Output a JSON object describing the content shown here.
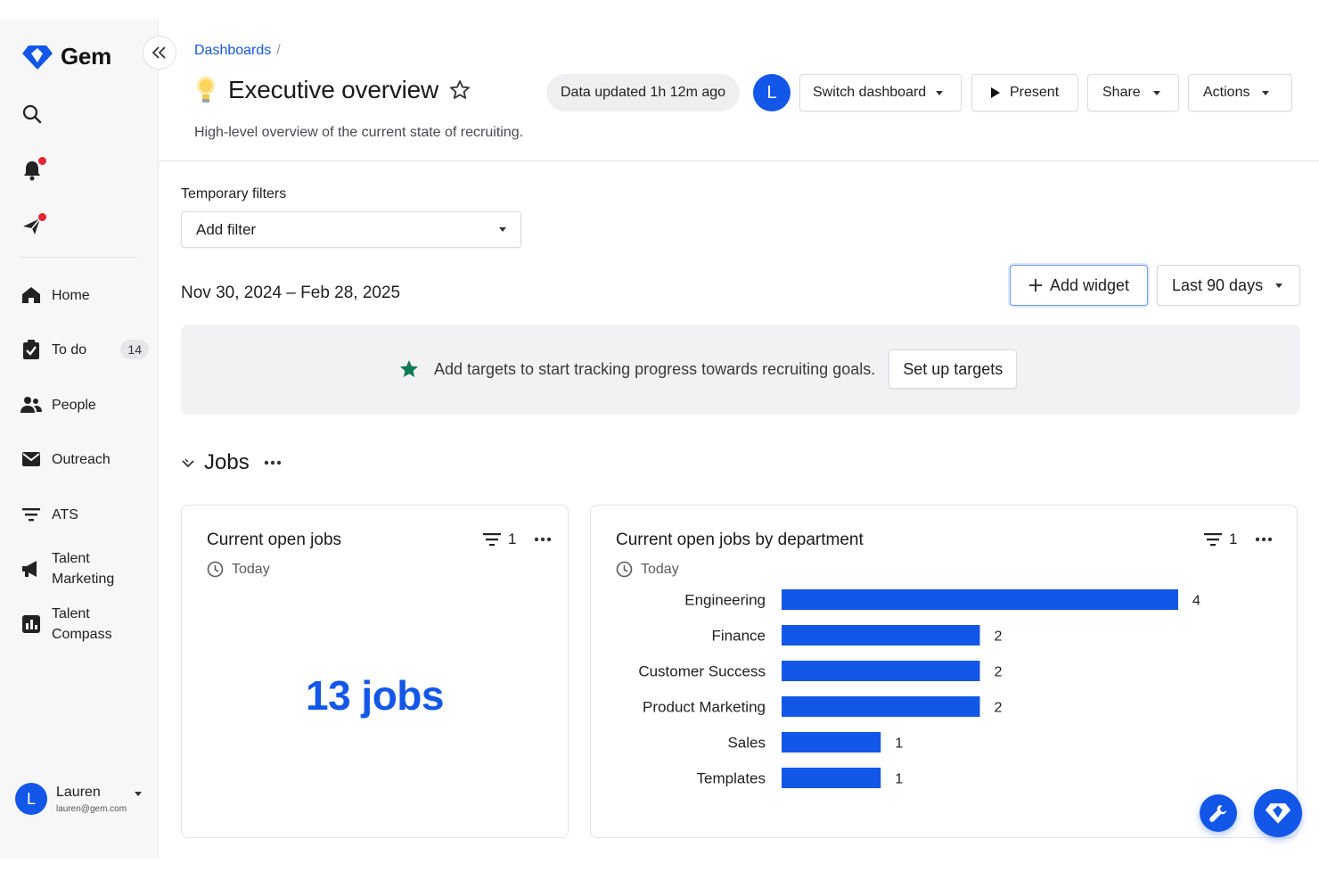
{
  "brand": {
    "name": "Gem",
    "color": "#1357e8"
  },
  "sidebar": {
    "nav": [
      {
        "id": "home",
        "label": "Home",
        "icon": "home-icon"
      },
      {
        "id": "todo",
        "label": "To do",
        "icon": "clipboard-check-icon",
        "badge": "14"
      },
      {
        "id": "people",
        "label": "People",
        "icon": "people-icon"
      },
      {
        "id": "outreach",
        "label": "Outreach",
        "icon": "envelope-icon"
      },
      {
        "id": "ats",
        "label": "ATS",
        "icon": "filter-lines-icon"
      },
      {
        "id": "talent-marketing",
        "label": "Talent Marketing",
        "icon": "megaphone-icon"
      },
      {
        "id": "talent-compass",
        "label": "Talent Compass",
        "icon": "bar-chart-icon"
      }
    ],
    "user": {
      "initial": "L",
      "name": "Lauren",
      "email": "lauren@gem.com"
    }
  },
  "header": {
    "breadcrumb": {
      "link": "Dashboards",
      "separator": "/"
    },
    "title": "Executive overview",
    "subtitle": "High-level overview of the current state of recruiting.",
    "updated": "Data updated 1h 12m ago",
    "avatar_initial": "L",
    "switch_label": "Switch dashboard",
    "present_label": "Present",
    "share_label": "Share",
    "actions_label": "Actions"
  },
  "filters": {
    "label": "Temporary filters",
    "add_filter": "Add filter"
  },
  "date_range": "Nov 30, 2024 – Feb 28, 2025",
  "toolbar": {
    "add_widget": "Add widget",
    "range": "Last 90 days"
  },
  "targets": {
    "message": "Add targets to start tracking progress towards recruiting goals.",
    "button": "Set up targets"
  },
  "section": {
    "title": "Jobs"
  },
  "cards": {
    "open_jobs": {
      "title": "Current open jobs",
      "time": "Today",
      "filter_count": "1",
      "value": "13 jobs"
    },
    "by_department": {
      "title": "Current open jobs by department",
      "time": "Today",
      "filter_count": "1"
    }
  },
  "chart_data": {
    "type": "bar",
    "orientation": "horizontal",
    "categories": [
      "Engineering",
      "Finance",
      "Customer Success",
      "Product Marketing",
      "Sales",
      "Templates"
    ],
    "values": [
      4,
      2,
      2,
      2,
      1,
      1
    ],
    "xlim": [
      0,
      4
    ],
    "bar_color": "#1357e8",
    "grid": false,
    "data_labels": true
  }
}
